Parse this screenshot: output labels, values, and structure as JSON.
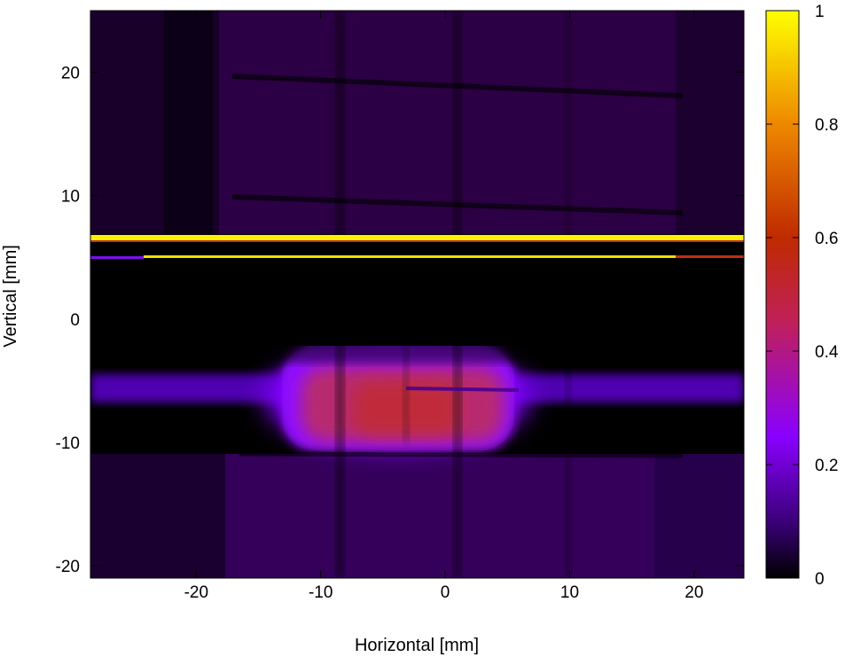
{
  "chart_data": {
    "type": "heatmap",
    "xlabel": "Horizontal [mm]",
    "ylabel": "Vertical [mm]",
    "xlim": [
      -28.5,
      24.0
    ],
    "ylim": [
      -21.0,
      25.0
    ],
    "x_ticks": [
      -20,
      -10,
      0,
      10,
      20
    ],
    "x_tick_labels": [
      "-20",
      "-10",
      "0",
      "10",
      "20"
    ],
    "y_ticks": [
      -20,
      -10,
      0,
      10,
      20
    ],
    "y_tick_labels": [
      "-20",
      "-10",
      "0",
      "10",
      "20"
    ],
    "colorbar": {
      "range": [
        0,
        1
      ],
      "ticks": [
        0,
        0.2,
        0.4,
        0.6,
        0.8,
        1
      ],
      "tick_labels": [
        "0",
        "0.2",
        "0.4",
        "0.6",
        "0.8",
        "1"
      ],
      "colormap": "gnuplot default (black-purple-red-yellow)",
      "stops": [
        {
          "value": 0.0,
          "color": "#000000"
        },
        {
          "value": 0.1,
          "color": "#3b007a"
        },
        {
          "value": 0.25,
          "color": "#8a00ff"
        },
        {
          "value": 0.45,
          "color": "#c0205a"
        },
        {
          "value": 0.6,
          "color": "#c02a00"
        },
        {
          "value": 0.8,
          "color": "#ee8800"
        },
        {
          "value": 1.0,
          "color": "#ffff00"
        }
      ]
    },
    "features": [
      {
        "name": "upper background region",
        "x": [
          -28.5,
          24.0
        ],
        "y": [
          7.0,
          25.0
        ],
        "intensity": 0.08
      },
      {
        "name": "lower background region",
        "x": [
          -28.5,
          24.0
        ],
        "y": [
          -21.0,
          -10.5
        ],
        "intensity": 0.09
      },
      {
        "name": "dark band",
        "x": [
          -28.5,
          24.0
        ],
        "y": [
          -4.5,
          4.8
        ],
        "intensity": 0.0
      },
      {
        "name": "saturated stripe",
        "x": [
          -28.5,
          24.0
        ],
        "y": [
          6.4,
          7.0
        ],
        "intensity": 1.0
      },
      {
        "name": "thin stripe",
        "x": [
          -24.0,
          17.0
        ],
        "y": [
          5.0,
          5.3
        ],
        "intensity": 0.95
      },
      {
        "name": "thin stripe right end",
        "x": [
          17.0,
          24.0
        ],
        "y": [
          5.0,
          5.3
        ],
        "intensity": 0.6
      },
      {
        "name": "horizontal beam band",
        "x": [
          -28.5,
          24.0
        ],
        "y": [
          -6.6,
          -4.4
        ],
        "intensity": 0.15
      },
      {
        "name": "beam spot core",
        "x": [
          -12.0,
          5.0
        ],
        "y": [
          -10.0,
          -2.0
        ],
        "intensity": 0.45
      },
      {
        "name": "beam spot halo",
        "x": [
          -14.0,
          6.5
        ],
        "y": [
          -10.5,
          -2.0
        ],
        "intensity": 0.28
      }
    ],
    "grid_lines": {
      "vertical_x": [
        -9.5,
        0.5
      ],
      "horizontal_y": [
        19.5,
        9.5,
        -10.8
      ]
    },
    "grid": false,
    "legend": "colorbar right"
  }
}
